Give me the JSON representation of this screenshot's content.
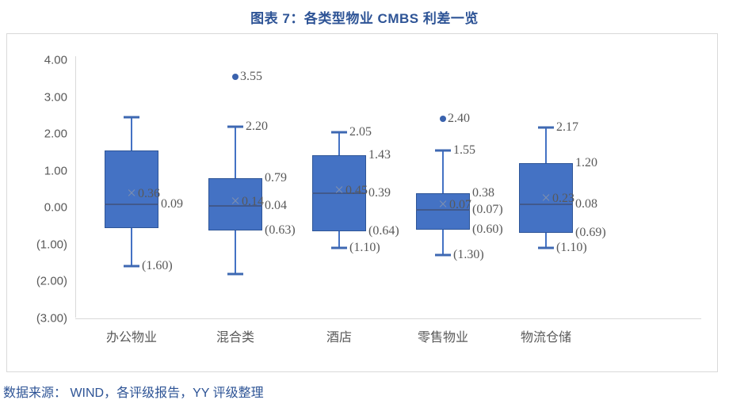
{
  "page": {
    "title": "图表 7：各类型物业 CMBS 利差一览",
    "footer": "数据来源： WIND，各评级报告，YY 评级整理"
  },
  "colors": {
    "title_blue": "#2E5496",
    "box_fill": "#4472C4",
    "box_border": "#2E5597",
    "median_line": "#41598C",
    "mean_marker": "#7E8FAF",
    "outlier": "#3A62AD",
    "label_gray": "#595959",
    "axis_gray": "#D9D9D9"
  },
  "icons": {
    "mean_marker_glyph": "×"
  },
  "chart_data": {
    "type": "box",
    "subtype": "boxplot-with-outliers",
    "title": "图表 7：各类型物业 CMBS 利差一览",
    "xlabel": "",
    "ylabel": "",
    "grid": false,
    "legend": false,
    "ylim": [
      -3.0,
      4.1
    ],
    "y_ticks": [
      {
        "value": 4,
        "label": "4.00"
      },
      {
        "value": 3,
        "label": "3.00"
      },
      {
        "value": 2,
        "label": "2.00"
      },
      {
        "value": 1,
        "label": "1.00"
      },
      {
        "value": 0,
        "label": "0.00"
      },
      {
        "value": -1,
        "label": "(1.00)"
      },
      {
        "value": -2,
        "label": "(2.00)"
      },
      {
        "value": -3,
        "label": "(3.00)"
      }
    ],
    "categories": [
      "办公物业",
      "混合类",
      "酒店",
      "零售物业",
      "物流仓储"
    ],
    "series": [
      {
        "category": "办公物业",
        "whisker_high": 2.45,
        "q3": 1.55,
        "mean": 0.36,
        "median": 0.09,
        "q1": -0.56,
        "whisker_low": -1.6,
        "outlier": null,
        "labels": {
          "whisker_high": "",
          "q3": "",
          "mean": "0.36",
          "median": "0.09",
          "q1": "",
          "whisker_low": "(1.60)",
          "outlier": ""
        }
      },
      {
        "category": "混合类",
        "whisker_high": 2.2,
        "q3": 0.79,
        "mean": 0.14,
        "median": 0.04,
        "q1": -0.63,
        "whisker_low": -1.8,
        "outlier": 3.55,
        "labels": {
          "whisker_high": "2.20",
          "q3": "0.79",
          "mean": "0.14",
          "median": "0.04",
          "q1": "(0.63)",
          "whisker_low": "",
          "outlier": "3.55"
        }
      },
      {
        "category": "酒店",
        "whisker_high": 2.05,
        "q3": 1.43,
        "mean": 0.45,
        "median": 0.39,
        "q1": -0.64,
        "whisker_low": -1.1,
        "outlier": null,
        "labels": {
          "whisker_high": "2.05",
          "q3": "1.43",
          "mean": "0.45",
          "median": "0.39",
          "q1": "(0.64)",
          "whisker_low": "(1.10)",
          "outlier": ""
        }
      },
      {
        "category": "零售物业",
        "whisker_high": 1.55,
        "q3": 0.38,
        "mean": 0.07,
        "median": -0.07,
        "q1": -0.6,
        "whisker_low": -1.3,
        "outlier": 2.4,
        "labels": {
          "whisker_high": "1.55",
          "q3": "0.38",
          "mean": "0.07",
          "median": "(0.07)",
          "q1": "(0.60)",
          "whisker_low": "(1.30)",
          "outlier": "2.40"
        }
      },
      {
        "category": "物流仓储",
        "whisker_high": 2.17,
        "q3": 1.2,
        "mean": 0.23,
        "median": 0.08,
        "q1": -0.69,
        "whisker_low": -1.1,
        "outlier": null,
        "labels": {
          "whisker_high": "2.17",
          "q3": "1.20",
          "mean": "0.23",
          "median": "0.08",
          "q1": "(0.69)",
          "whisker_low": "(1.10)",
          "outlier": ""
        }
      }
    ]
  }
}
